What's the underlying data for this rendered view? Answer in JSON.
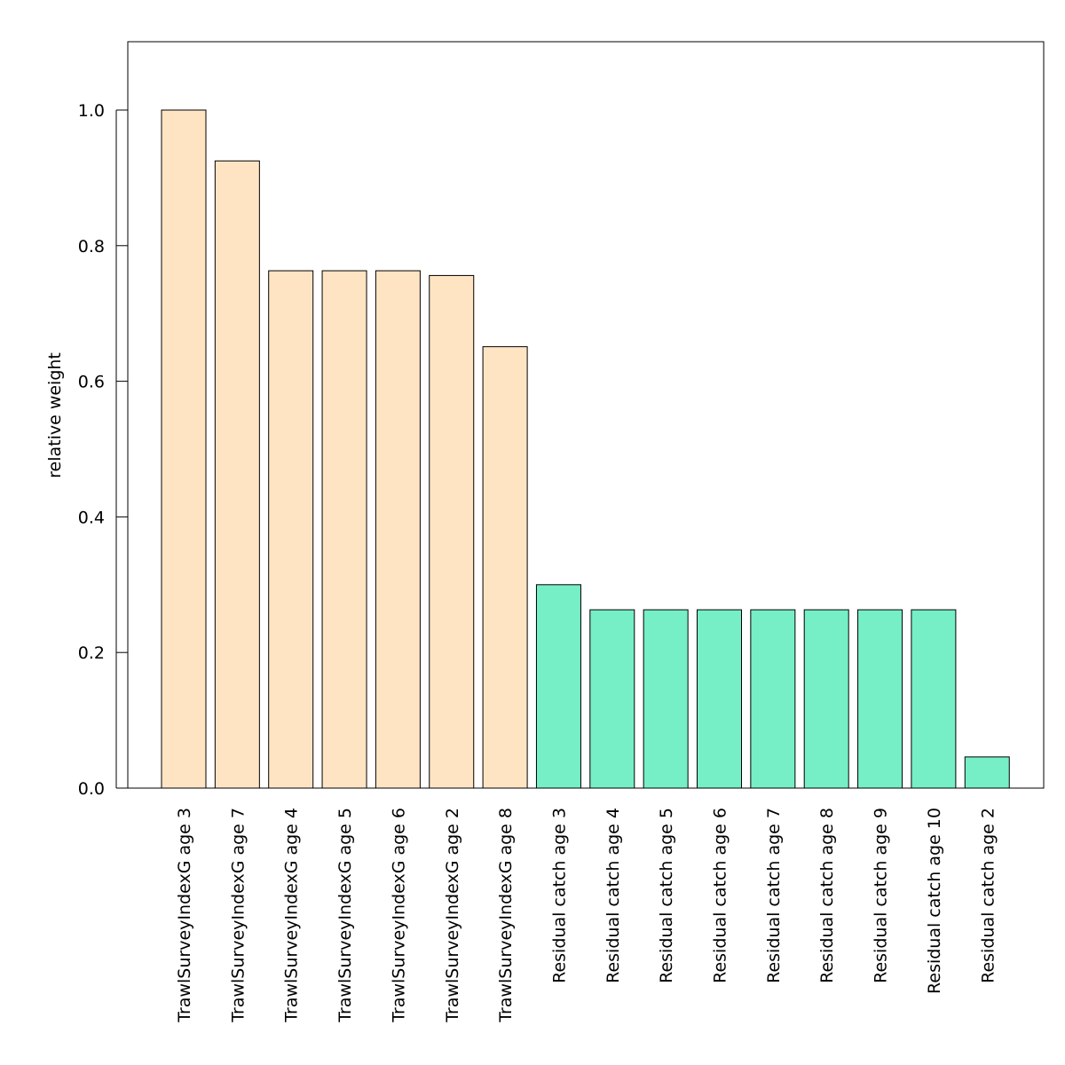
{
  "chart_data": {
    "type": "bar",
    "title": "",
    "xlabel": "",
    "ylabel": "relative weight",
    "ylim": [
      0,
      1.1
    ],
    "yticks": [
      "0.0",
      "0.2",
      "0.4",
      "0.6",
      "0.8",
      "1.0"
    ],
    "ytick_values": [
      0,
      0.2,
      0.4,
      0.6,
      0.8,
      1.0
    ],
    "grid": false,
    "legend": "none",
    "categories": [
      "TrawlSurveyIndexG age 3",
      "TrawlSurveyIndexG age 7",
      "TrawlSurveyIndexG age 4",
      "TrawlSurveyIndexG age 5",
      "TrawlSurveyIndexG age 6",
      "TrawlSurveyIndexG age 2",
      "TrawlSurveyIndexG age 8",
      "Residual catch age 3",
      "Residual catch age 4",
      "Residual catch age 5",
      "Residual catch age 6",
      "Residual catch age 7",
      "Residual catch age 8",
      "Residual catch age 9",
      "Residual catch age 10",
      "Residual catch age 2"
    ],
    "values": [
      1.0,
      0.925,
      0.763,
      0.763,
      0.763,
      0.756,
      0.651,
      0.3,
      0.263,
      0.263,
      0.263,
      0.263,
      0.263,
      0.263,
      0.263,
      0.046
    ],
    "bar_groups": [
      "survey",
      "survey",
      "survey",
      "survey",
      "survey",
      "survey",
      "survey",
      "catch",
      "catch",
      "catch",
      "catch",
      "catch",
      "catch",
      "catch",
      "catch",
      "catch"
    ],
    "colors": {
      "survey": "#FFE4C4",
      "catch": "#76EEC6",
      "bar_outline": "#000000",
      "frame": "#000000"
    }
  }
}
